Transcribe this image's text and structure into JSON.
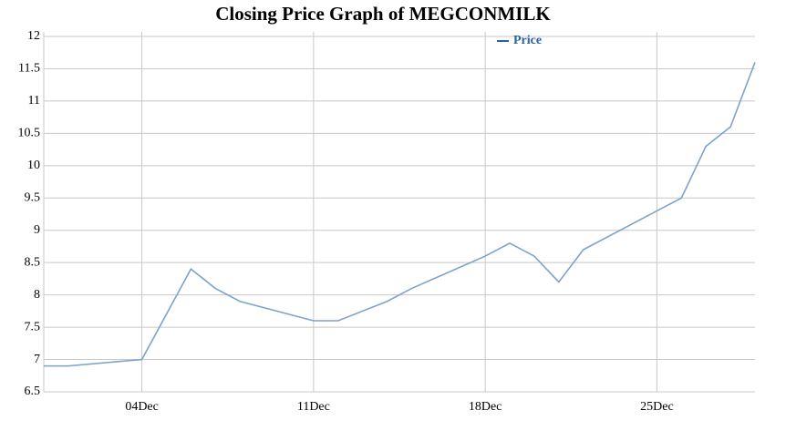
{
  "chart_data": {
    "type": "line",
    "title": "Closing Price Graph of MEGCONMILK",
    "x": [
      0,
      1,
      4,
      6,
      7,
      8,
      11,
      12,
      14,
      15,
      18,
      19,
      20,
      21,
      22,
      25,
      26,
      27,
      28,
      29
    ],
    "series": [
      {
        "name": "Price",
        "color": "#7ba3cc",
        "values": [
          6.9,
          6.9,
          7.0,
          8.4,
          8.1,
          7.9,
          7.6,
          7.6,
          7.9,
          8.1,
          8.6,
          8.8,
          8.6,
          8.2,
          8.7,
          9.3,
          9.5,
          10.3,
          10.6,
          11.6
        ]
      }
    ],
    "xlim": [
      0,
      29
    ],
    "xticks": [
      {
        "value": 4,
        "label": "04Dec"
      },
      {
        "value": 11,
        "label": "11Dec"
      },
      {
        "value": 18,
        "label": "18Dec"
      },
      {
        "value": 25,
        "label": "25Dec"
      }
    ],
    "ylim": [
      6.5,
      12
    ],
    "yticks": [
      6.5,
      7,
      7.5,
      8,
      8.5,
      9,
      9.5,
      10,
      10.5,
      11,
      11.5,
      12
    ],
    "grid": true,
    "legend": "top"
  }
}
